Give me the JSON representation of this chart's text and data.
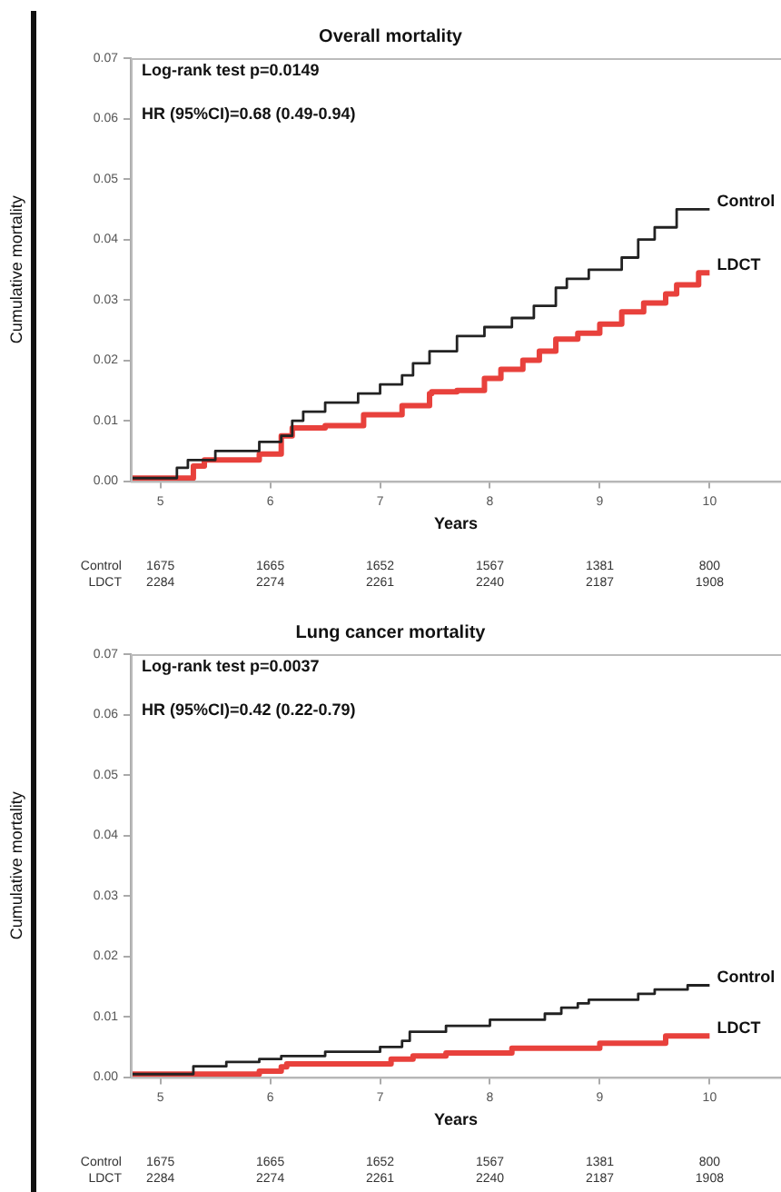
{
  "chart_data": [
    {
      "type": "step",
      "title": "Overall mortality",
      "xlabel": "Years",
      "ylabel": "Cumulative mortality",
      "xlim": [
        4.73,
        10.65
      ],
      "ylim": [
        0,
        0.07
      ],
      "xticks": [
        5,
        6,
        7,
        8,
        9,
        10
      ],
      "yticks": [
        {
          "value": 0,
          "label": "0.00"
        },
        {
          "value": 0.01,
          "label": "0.01"
        },
        {
          "value": 0.02,
          "label": "0.02"
        },
        {
          "value": 0.03,
          "label": "0.03"
        },
        {
          "value": 0.04,
          "label": "0.04"
        },
        {
          "value": 0.05,
          "label": "0.05"
        },
        {
          "value": 0.06,
          "label": "0.06"
        },
        {
          "value": 0.07,
          "label": "0.07"
        }
      ],
      "grid": false,
      "legend": false,
      "series": [
        {
          "name": "Control",
          "color": "#222222",
          "x": [
            4.73,
            5.15,
            5.25,
            5.5,
            5.9,
            6.1,
            6.2,
            6.3,
            6.5,
            6.8,
            7.0,
            7.2,
            7.3,
            7.45,
            7.7,
            7.95,
            8.2,
            8.4,
            8.6,
            8.7,
            8.9,
            9.2,
            9.35,
            9.5,
            9.7,
            9.8,
            10.0
          ],
          "values": [
            0.0005,
            0.0005,
            0.0022,
            0.0035,
            0.005,
            0.0065,
            0.0075,
            0.01,
            0.0115,
            0.013,
            0.0145,
            0.016,
            0.0175,
            0.0195,
            0.0215,
            0.024,
            0.0255,
            0.027,
            0.029,
            0.032,
            0.0335,
            0.035,
            0.037,
            0.04,
            0.042,
            0.045,
            0.045
          ]
        },
        {
          "name": "LDCT",
          "color": "#e8413c",
          "x": [
            4.73,
            5.3,
            5.4,
            5.9,
            6.1,
            6.2,
            6.5,
            6.85,
            7.2,
            7.45,
            7.47,
            7.7,
            7.95,
            8.1,
            8.3,
            8.45,
            8.6,
            8.8,
            9.0,
            9.2,
            9.4,
            9.6,
            9.7,
            9.9,
            10.0
          ],
          "values": [
            0.0005,
            0.0005,
            0.0025,
            0.0035,
            0.0045,
            0.0075,
            0.0088,
            0.0092,
            0.011,
            0.0125,
            0.0145,
            0.0148,
            0.015,
            0.017,
            0.0185,
            0.02,
            0.0215,
            0.0235,
            0.0245,
            0.026,
            0.028,
            0.0295,
            0.031,
            0.0325,
            0.0345
          ]
        }
      ],
      "annotations": [
        "Log-rank test p=0.0149",
        "HR (95%CI)=0.68 (0.49-0.94)",
        "Control",
        "1675",
        "1665",
        "1652",
        "1567",
        "1381",
        "800",
        "LDCT",
        "2284",
        "2274",
        "2261",
        "2240",
        "2187",
        "1908"
      ]
    },
    {
      "type": "step",
      "title": "Lung cancer mortality",
      "xlabel": "Years",
      "ylabel": "Cumulative mortality",
      "xlim": [
        4.73,
        10.65
      ],
      "ylim": [
        0,
        0.07
      ],
      "xticks": [
        5,
        6,
        7,
        8,
        9,
        10
      ],
      "yticks": [
        {
          "value": 0,
          "label": "0.00"
        },
        {
          "value": 0.01,
          "label": "0.01"
        },
        {
          "value": 0.02,
          "label": "0.02"
        },
        {
          "value": 0.03,
          "label": "0.03"
        },
        {
          "value": 0.04,
          "label": "0.04"
        },
        {
          "value": 0.05,
          "label": "0.05"
        },
        {
          "value": 0.06,
          "label": "0.06"
        },
        {
          "value": 0.07,
          "label": "0.07"
        }
      ],
      "grid": false,
      "legend": false,
      "series": [
        {
          "name": "Control",
          "color": "#222222",
          "x": [
            4.73,
            5.3,
            5.6,
            5.9,
            6.1,
            6.5,
            7.0,
            7.2,
            7.27,
            7.6,
            8.0,
            8.5,
            8.65,
            8.8,
            8.9,
            9.35,
            9.5,
            9.8,
            9.85,
            10.0
          ],
          "values": [
            0.0005,
            0.0005,
            0.0018,
            0.0025,
            0.003,
            0.0035,
            0.0042,
            0.005,
            0.006,
            0.0075,
            0.0085,
            0.0095,
            0.0105,
            0.0115,
            0.0122,
            0.0128,
            0.0138,
            0.0145,
            0.0152,
            0.0152
          ]
        },
        {
          "name": "LDCT",
          "color": "#e8413c",
          "x": [
            4.73,
            5.9,
            6.1,
            6.15,
            7.1,
            7.3,
            7.6,
            8.2,
            9.0,
            9.6,
            10.0
          ],
          "values": [
            0.0005,
            0.0005,
            0.001,
            0.0017,
            0.0022,
            0.003,
            0.0035,
            0.004,
            0.0048,
            0.0056,
            0.0068
          ]
        }
      ],
      "annotations": [
        "Log-rank test p=0.0037",
        "HR (95%CI)=0.42 (0.22-0.79)",
        "Control",
        "1675",
        "1665",
        "1652",
        "1567",
        "1381",
        "800",
        "LDCT",
        "2284",
        "2274",
        "2261",
        "2240",
        "2187",
        "1908"
      ]
    }
  ]
}
